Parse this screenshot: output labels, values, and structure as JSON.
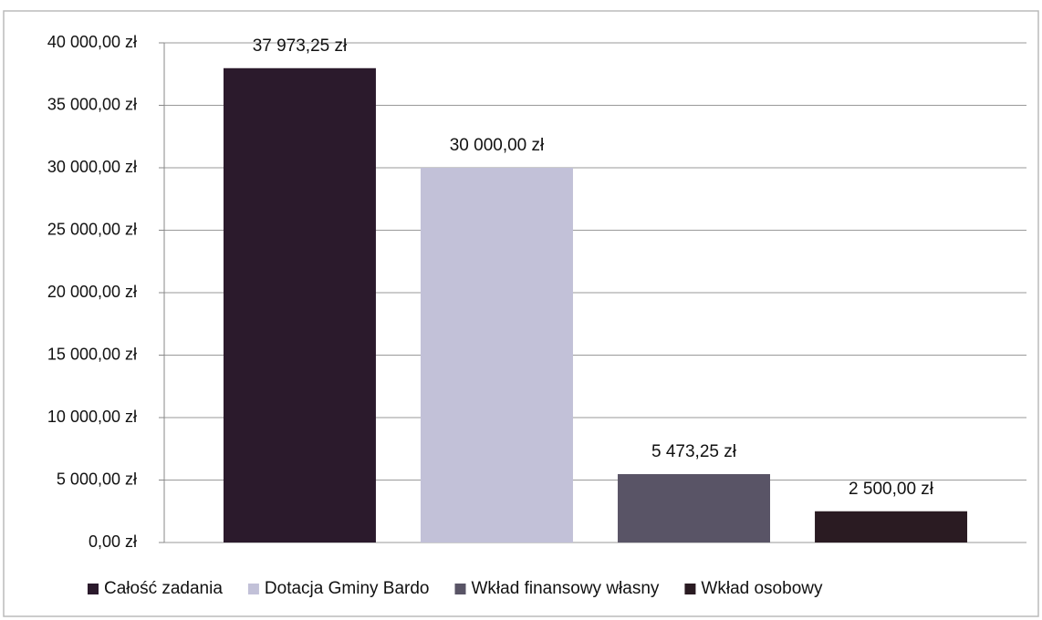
{
  "chart_data": {
    "type": "bar",
    "series": [
      {
        "name": "Całość zadania",
        "color": "#2b1a2c",
        "values": [
          37973.25
        ],
        "value_labels": [
          "37 973,25 zł"
        ]
      },
      {
        "name": "Dotacja Gminy Bardo",
        "color": "#c2c1d8",
        "values": [
          30000
        ],
        "value_labels": [
          "30 000,00 zł"
        ]
      },
      {
        "name": "Wkład finansowy własny",
        "color": "#595466",
        "values": [
          5473.25
        ],
        "value_labels": [
          "5 473,25 zł"
        ]
      },
      {
        "name": "Wkład osobowy",
        "color": "#2a1b22",
        "values": [
          2500
        ],
        "value_labels": [
          "2 500,00 zł"
        ]
      }
    ],
    "ylim": [
      0,
      40000
    ],
    "yticks": [
      {
        "value": 0,
        "label": "0,00 zł"
      },
      {
        "value": 5000,
        "label": "5 000,00 zł"
      },
      {
        "value": 10000,
        "label": "10 000,00 zł"
      },
      {
        "value": 15000,
        "label": "15 000,00 zł"
      },
      {
        "value": 20000,
        "label": "20 000,00 zł"
      },
      {
        "value": 25000,
        "label": "25 000,00 zł"
      },
      {
        "value": 30000,
        "label": "30 000,00 zł"
      },
      {
        "value": 35000,
        "label": "35 000,00 zł"
      },
      {
        "value": 40000,
        "label": "40 000,00 zł"
      }
    ],
    "grid": true,
    "legend": "bottom"
  }
}
